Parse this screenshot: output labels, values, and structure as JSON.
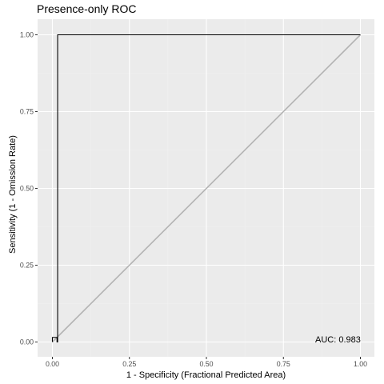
{
  "chart_data": {
    "type": "line",
    "title": "Presence-only ROC",
    "xlabel": "1 - Specificity (Fractional Predicted Area)",
    "ylabel": "Sensitivity (1 - Omission Rate)",
    "xlim": [
      0,
      1
    ],
    "ylim": [
      0,
      1
    ],
    "x_ticks": [
      "0.00",
      "0.25",
      "0.50",
      "0.75",
      "1.00"
    ],
    "y_ticks": [
      "0.00",
      "0.25",
      "0.50",
      "0.75",
      "1.00"
    ],
    "grid": true,
    "series": [
      {
        "x": [
          0,
          0.0,
          0.015,
          0.015,
          0.017,
          0.017,
          1.0
        ],
        "y": [
          0,
          0.015,
          0.015,
          0.0,
          0.0,
          1.0,
          1.0
        ],
        "color": "#000000"
      },
      {
        "x": [
          0,
          1
        ],
        "y": [
          0,
          1
        ],
        "color": "#b3b3b3"
      }
    ],
    "annotations": [
      {
        "text": "AUC: 0.983",
        "x": 1.0,
        "y": 0.0
      }
    ],
    "colors": {
      "panel_background": "#ebebeb",
      "grid_major": "#ffffff",
      "grid_minor": "#f2f2f2"
    }
  }
}
